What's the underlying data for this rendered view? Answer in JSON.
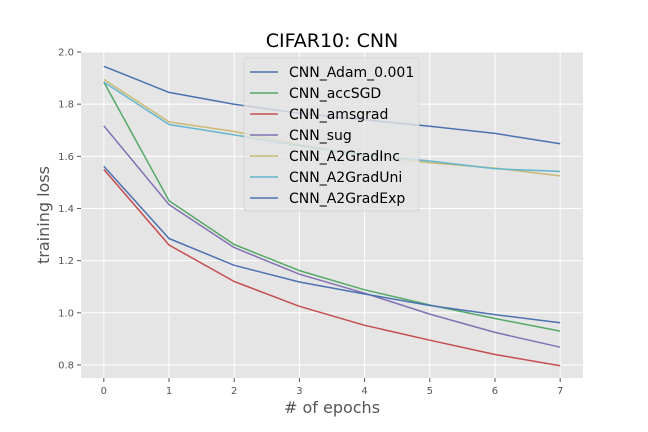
{
  "chart_data": {
    "type": "line",
    "title": "CIFAR10: CNN",
    "xlabel": "# of epochs",
    "ylabel": "training loss",
    "x": [
      0,
      1,
      2,
      3,
      4,
      5,
      6,
      7
    ],
    "xticks": [
      "0",
      "1",
      "2",
      "3",
      "4",
      "5",
      "6",
      "7"
    ],
    "yticks": [
      "0.8",
      "1.0",
      "1.2",
      "1.4",
      "1.6",
      "1.8",
      "2.0"
    ],
    "xlim": [
      -0.35,
      7.35
    ],
    "ylim": [
      0.75,
      2.0
    ],
    "grid": true,
    "legend_position": "top-center",
    "style": "ggplot",
    "series": [
      {
        "name": "CNN_Adam_0.001",
        "color": "#4c72b0",
        "values": [
          1.945,
          1.845,
          1.8,
          1.765,
          1.74,
          1.715,
          1.688,
          1.648
        ]
      },
      {
        "name": "CNN_accSGD",
        "color": "#55a868",
        "values": [
          1.885,
          1.43,
          1.262,
          1.162,
          1.088,
          1.03,
          0.978,
          0.93
        ]
      },
      {
        "name": "CNN_amsgrad",
        "color": "#c44e52",
        "values": [
          1.55,
          1.26,
          1.12,
          1.025,
          0.952,
          0.895,
          0.84,
          0.797
        ]
      },
      {
        "name": "CNN_sug",
        "color": "#8172b2",
        "values": [
          1.717,
          1.415,
          1.25,
          1.148,
          1.075,
          0.995,
          0.925,
          0.868
        ]
      },
      {
        "name": "CNN_A2GradInc",
        "color": "#ccb974",
        "values": [
          1.895,
          1.732,
          1.695,
          1.645,
          1.605,
          1.575,
          1.555,
          1.525
        ]
      },
      {
        "name": "CNN_A2GradUni",
        "color": "#64b5cd",
        "values": [
          1.885,
          1.722,
          1.682,
          1.64,
          1.605,
          1.582,
          1.552,
          1.542
        ]
      },
      {
        "name": "CNN_A2GradExp",
        "color": "#4c72b0",
        "values": [
          1.562,
          1.285,
          1.182,
          1.118,
          1.072,
          1.028,
          0.993,
          0.962
        ]
      }
    ]
  }
}
